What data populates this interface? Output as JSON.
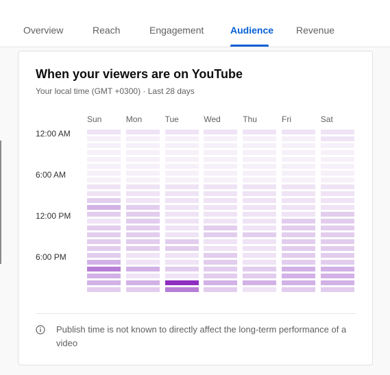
{
  "tabs": [
    {
      "label": "Overview",
      "active": false
    },
    {
      "label": "Reach",
      "active": false
    },
    {
      "label": "Engagement",
      "active": false
    },
    {
      "label": "Audience",
      "active": true
    },
    {
      "label": "Revenue",
      "active": false
    }
  ],
  "card": {
    "title": "When your viewers are on YouTube",
    "subtitle": "Your local time (GMT +0300) · Last 28 days",
    "note": "Publish time is not known to directly affect the long-term performance of a video"
  },
  "icons": {
    "note_icon": "info-icon"
  },
  "colors": {
    "accent": "#065fd4",
    "heat_low": "#f3e9f7",
    "heat_high": "#8e2dbf"
  },
  "chart_data": {
    "type": "heatmap",
    "x": [
      "Sun",
      "Mon",
      "Tue",
      "Wed",
      "Thu",
      "Fri",
      "Sat"
    ],
    "y_tick_labels": [
      "12:00 AM",
      "6:00 AM",
      "12:00 PM",
      "6:00 PM"
    ],
    "rows_per_column": 24,
    "levels": [
      [
        1,
        0,
        0,
        0,
        0,
        0,
        0,
        0,
        1,
        1,
        2,
        3,
        2,
        1,
        2,
        2,
        2,
        2,
        2,
        3,
        4,
        3,
        3,
        2
      ],
      [
        1,
        0,
        0,
        0,
        0,
        0,
        0,
        0,
        1,
        1,
        1,
        2,
        2,
        2,
        2,
        2,
        2,
        2,
        1,
        1,
        3,
        1,
        3,
        2
      ],
      [
        1,
        0,
        0,
        0,
        0,
        0,
        0,
        0,
        1,
        1,
        1,
        1,
        1,
        1,
        1,
        1,
        2,
        2,
        1,
        1,
        2,
        1,
        5,
        4
      ],
      [
        1,
        0,
        0,
        0,
        0,
        0,
        0,
        0,
        1,
        1,
        1,
        1,
        1,
        1,
        2,
        2,
        1,
        1,
        2,
        2,
        2,
        2,
        3,
        2
      ],
      [
        1,
        0,
        0,
        0,
        0,
        0,
        0,
        0,
        1,
        1,
        1,
        1,
        1,
        1,
        1,
        2,
        1,
        1,
        1,
        1,
        2,
        2,
        3,
        1
      ],
      [
        1,
        0,
        0,
        0,
        0,
        0,
        0,
        0,
        1,
        1,
        1,
        1,
        1,
        2,
        2,
        2,
        2,
        2,
        2,
        2,
        3,
        3,
        3,
        2
      ],
      [
        1,
        1,
        0,
        0,
        0,
        0,
        0,
        0,
        1,
        1,
        1,
        1,
        2,
        2,
        2,
        2,
        2,
        2,
        2,
        2,
        3,
        3,
        3,
        2
      ]
    ]
  }
}
